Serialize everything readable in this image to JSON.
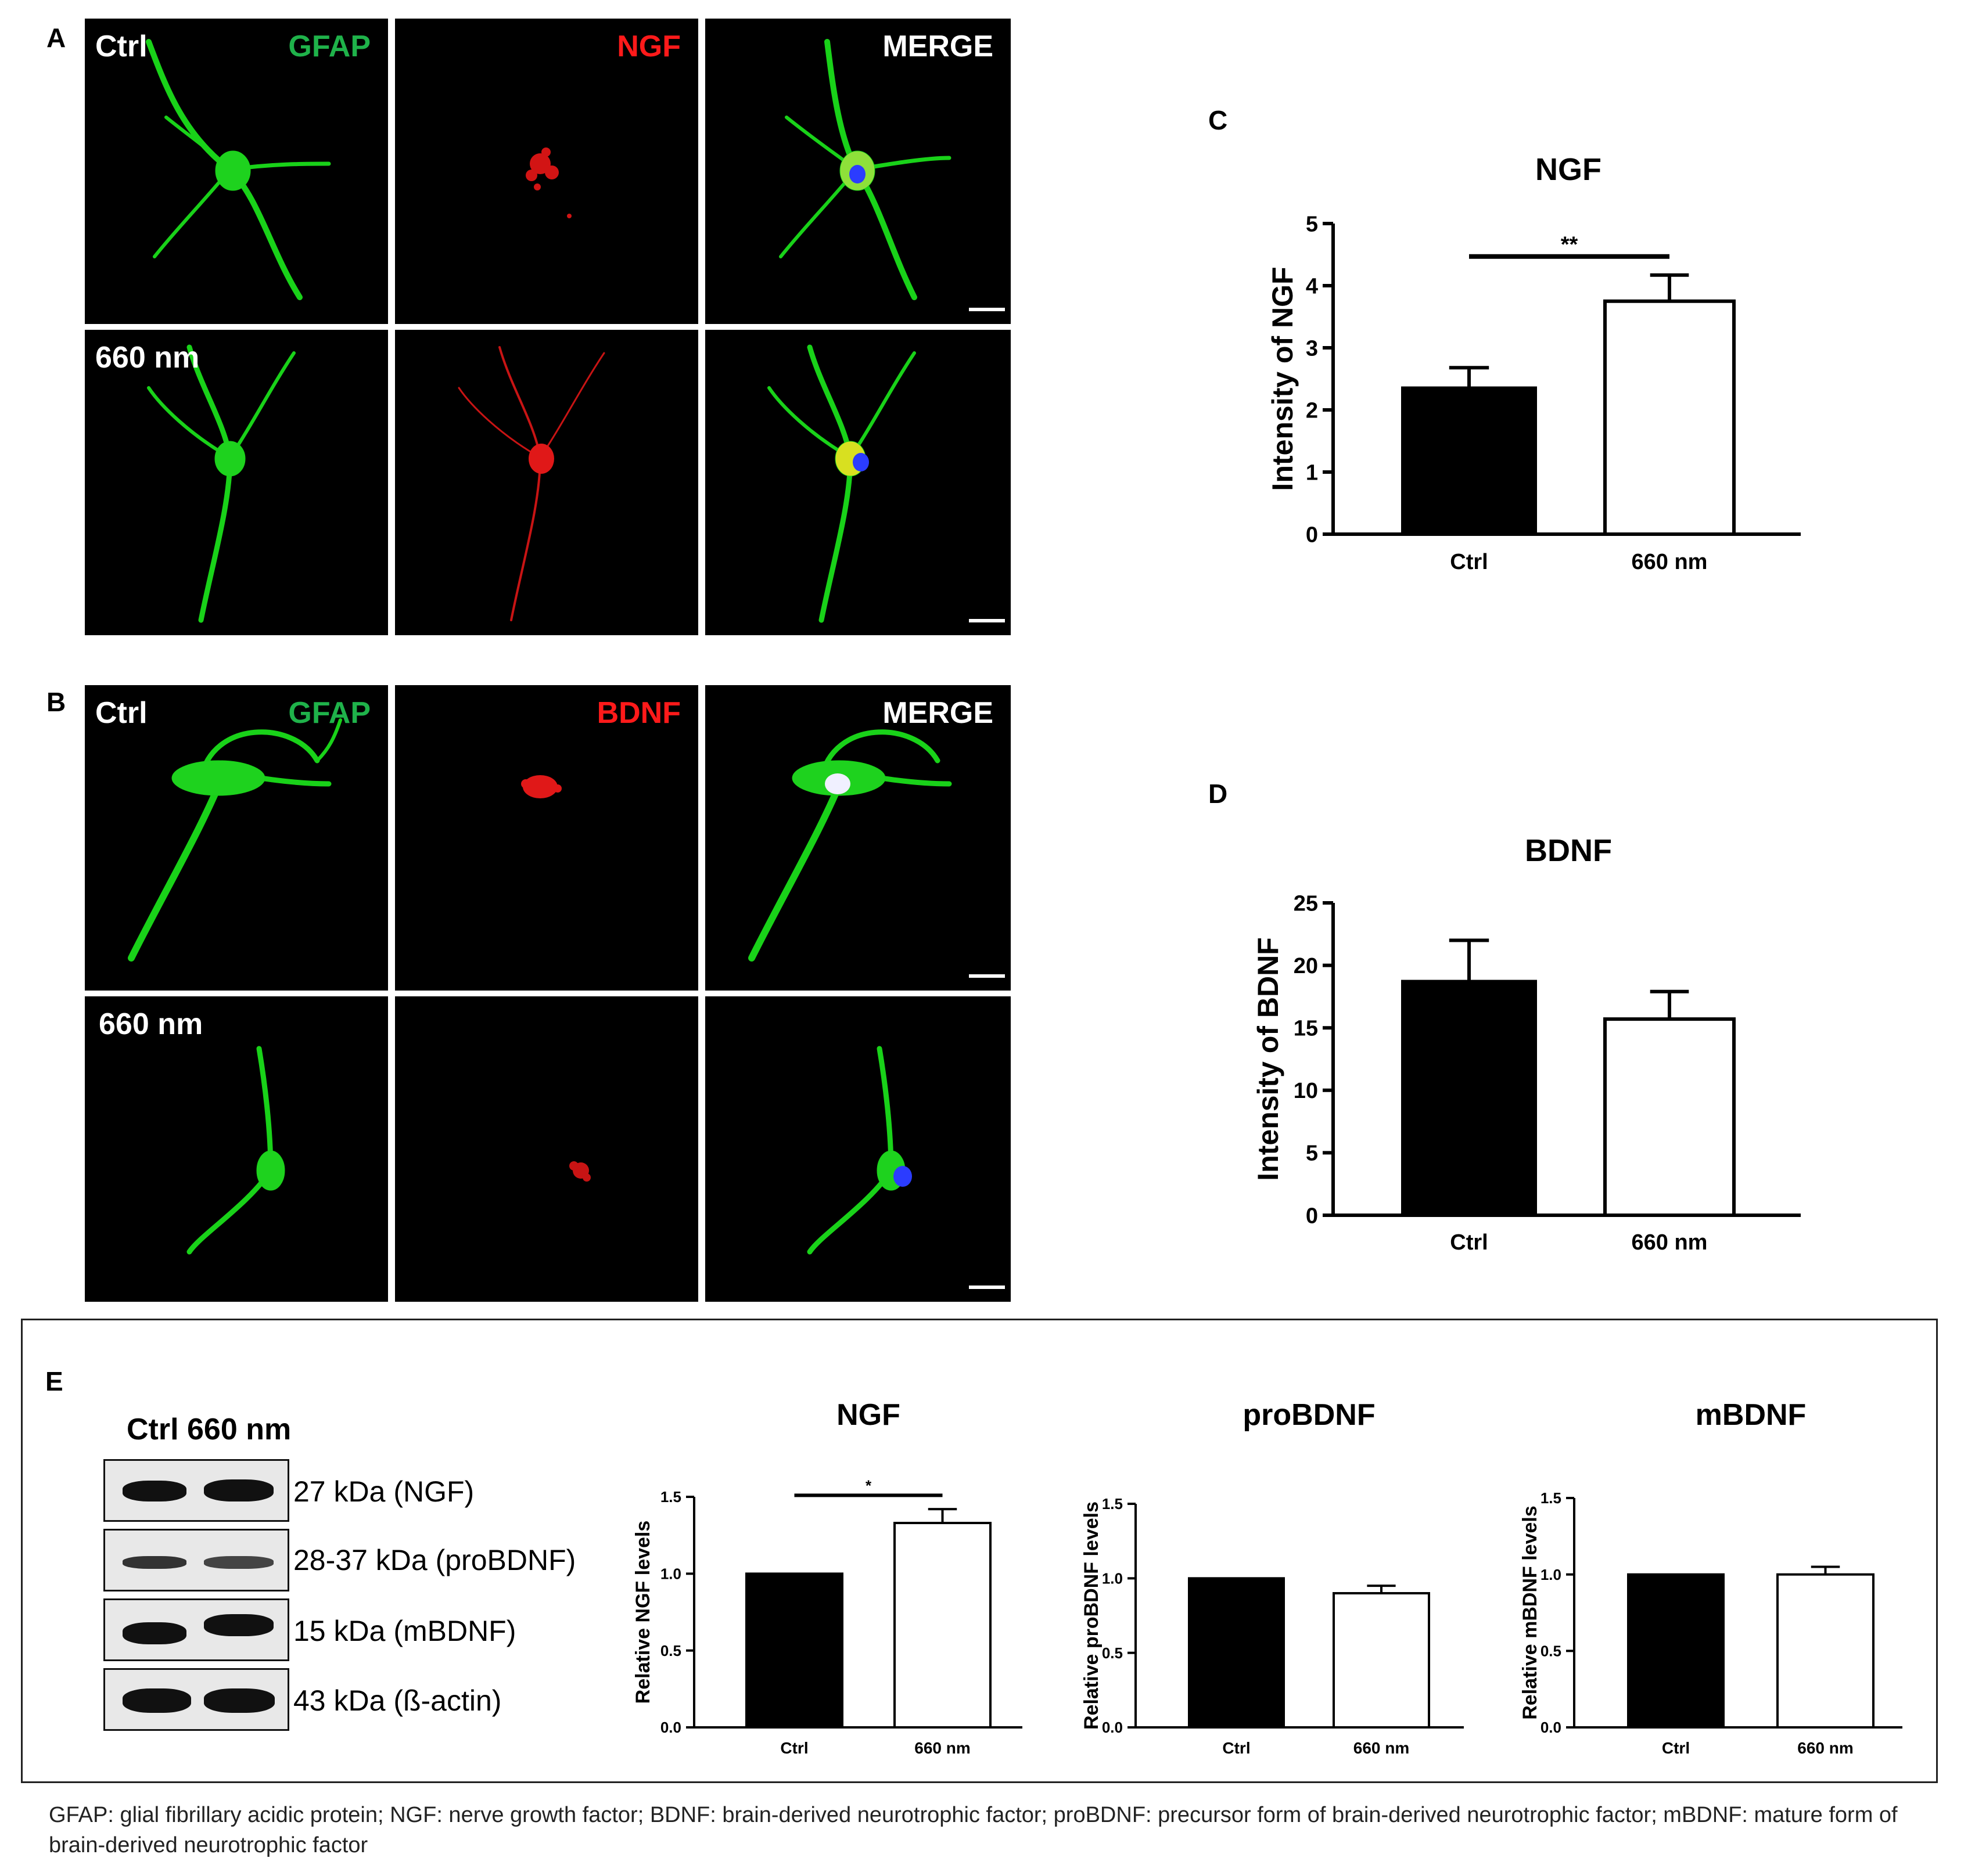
{
  "panel_letters": {
    "a": "A",
    "b": "B",
    "c": "C",
    "d": "D",
    "e": "E"
  },
  "micrographs": {
    "a": {
      "row_labels": [
        "Ctrl",
        "660 nm"
      ],
      "column_labels": [
        {
          "text": "GFAP",
          "color": "#1fb24a"
        },
        {
          "text": "NGF",
          "color": "#ff1a1a"
        },
        {
          "text": "MERGE",
          "color": "#ffffff"
        }
      ]
    },
    "b": {
      "row_labels": [
        "Ctrl",
        "660 nm"
      ],
      "column_labels": [
        {
          "text": "GFAP",
          "color": "#1fb24a"
        },
        {
          "text": "BDNF",
          "color": "#ff1a1a"
        },
        {
          "text": "MERGE",
          "color": "#ffffff"
        }
      ]
    }
  },
  "blot": {
    "header": "Ctrl 660 nm",
    "bands": [
      "27 kDa (NGF)",
      "28-37 kDa (proBDNF)",
      "15 kDa (mBDNF)",
      "43 kDa (ß-actin)"
    ]
  },
  "chart_data": [
    {
      "id": "c",
      "type": "bar",
      "title": "NGF",
      "xlabel": "",
      "ylabel": "Intensity of NGF",
      "categories": [
        "Ctrl",
        "660 nm"
      ],
      "values": [
        2.35,
        3.75
      ],
      "errors": [
        0.33,
        0.42
      ],
      "ylim": [
        0,
        5
      ],
      "yticks": [
        "0",
        "1",
        "2",
        "3",
        "4",
        "5"
      ],
      "fills": [
        "#000000",
        "#ffffff"
      ],
      "significance": "**",
      "grid": false
    },
    {
      "id": "d",
      "type": "bar",
      "title": "BDNF",
      "xlabel": "",
      "ylabel": "Intensity of BDNF",
      "categories": [
        "Ctrl",
        "660 nm"
      ],
      "values": [
        18.7,
        15.7
      ],
      "errors": [
        3.3,
        2.2
      ],
      "ylim": [
        0,
        25
      ],
      "yticks": [
        "0",
        "5",
        "10",
        "15",
        "20",
        "25"
      ],
      "fills": [
        "#000000",
        "#ffffff"
      ],
      "significance": "",
      "grid": false
    },
    {
      "id": "e1",
      "type": "bar",
      "title": "NGF",
      "xlabel": "",
      "ylabel": "Relative NGF levels",
      "categories": [
        "Ctrl",
        "660 nm"
      ],
      "values": [
        1.0,
        1.33
      ],
      "errors": [
        0,
        0.09
      ],
      "ylim": [
        0,
        1.5
      ],
      "yticks": [
        "0.0",
        "0.5",
        "1.0",
        "1.5"
      ],
      "fills": [
        "#000000",
        "#ffffff"
      ],
      "significance": "*",
      "grid": false
    },
    {
      "id": "e2",
      "type": "bar",
      "title": "proBDNF",
      "xlabel": "",
      "ylabel": "Relative proBDNF levels",
      "categories": [
        "Ctrl",
        "660 nm"
      ],
      "values": [
        1.0,
        0.9
      ],
      "errors": [
        0,
        0.05
      ],
      "ylim": [
        0,
        1.5
      ],
      "yticks": [
        "0.0",
        "0.5",
        "1.0",
        "1.5"
      ],
      "fills": [
        "#000000",
        "#ffffff"
      ],
      "significance": "",
      "grid": false
    },
    {
      "id": "e3",
      "type": "bar",
      "title": "mBDNF",
      "xlabel": "",
      "ylabel": "Relative mBDNF levels",
      "categories": [
        "Ctrl",
        "660 nm"
      ],
      "values": [
        1.0,
        1.0
      ],
      "errors": [
        0,
        0.05
      ],
      "ylim": [
        0,
        1.5
      ],
      "yticks": [
        "0.0",
        "0.5",
        "1.0",
        "1.5"
      ],
      "fills": [
        "#000000",
        "#ffffff"
      ],
      "significance": "",
      "grid": false
    }
  ],
  "caption": "GFAP: glial fibrillary acidic protein; NGF: nerve growth factor; BDNF: brain-derived neurotrophic factor; proBDNF: precursor form of brain-derived neurotrophic factor; mBDNF: mature form of brain-derived neurotrophic factor"
}
